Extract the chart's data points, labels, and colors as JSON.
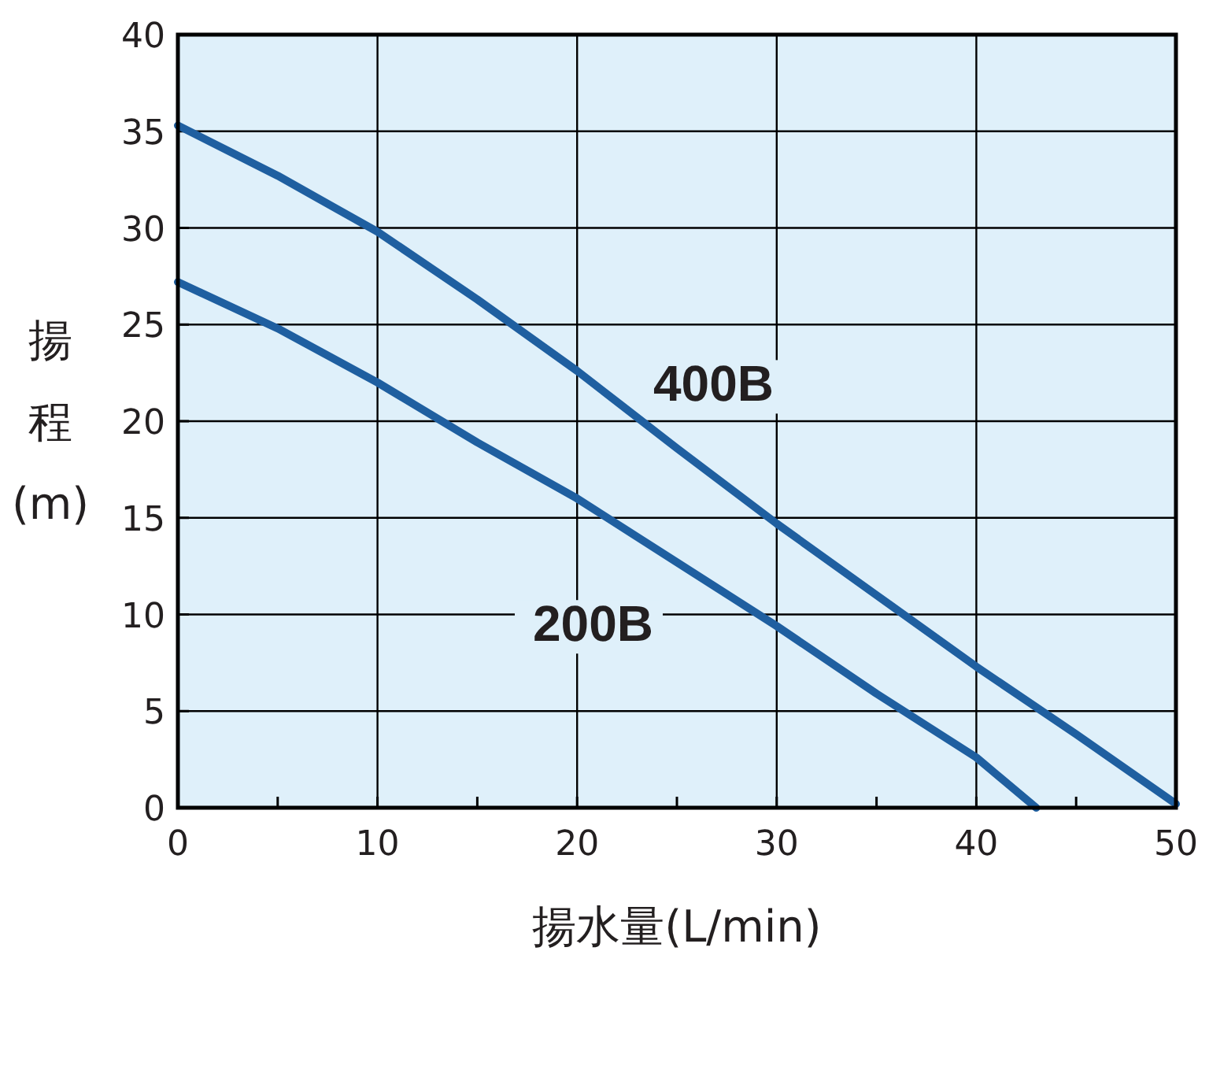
{
  "chart_data": {
    "type": "line",
    "xlabel": "揚水量(L/min)",
    "ylabel": "揚程(m)",
    "xlim": [
      0,
      50
    ],
    "ylim": [
      0,
      40
    ],
    "xticks": [
      0,
      {
        "value": 5,
        "label": null
      },
      10,
      {
        "value": 15,
        "label": null
      },
      20,
      {
        "value": 25,
        "label": null
      },
      30,
      {
        "value": 35,
        "label": null
      },
      40,
      {
        "value": 45,
        "label": null
      },
      50
    ],
    "yticks": [
      0,
      5,
      10,
      15,
      20,
      25,
      30,
      35,
      40
    ],
    "grid": true,
    "marker": "none",
    "line_style": "solid",
    "series": [
      {
        "name": "400B",
        "color": "#1f5fa0",
        "x": [
          0,
          5,
          10,
          15,
          20,
          25,
          30,
          35,
          40,
          45,
          50
        ],
        "values": [
          35.3,
          32.7,
          29.8,
          26.3,
          22.6,
          18.6,
          14.7,
          11.0,
          7.3,
          3.8,
          0.2
        ]
      },
      {
        "name": "200B",
        "color": "#1f5fa0",
        "x": [
          0,
          5,
          10,
          15,
          20,
          25,
          30,
          35,
          40,
          43
        ],
        "values": [
          27.2,
          24.8,
          22.0,
          18.9,
          16.0,
          12.7,
          9.4,
          5.9,
          2.6,
          0
        ]
      }
    ]
  }
}
